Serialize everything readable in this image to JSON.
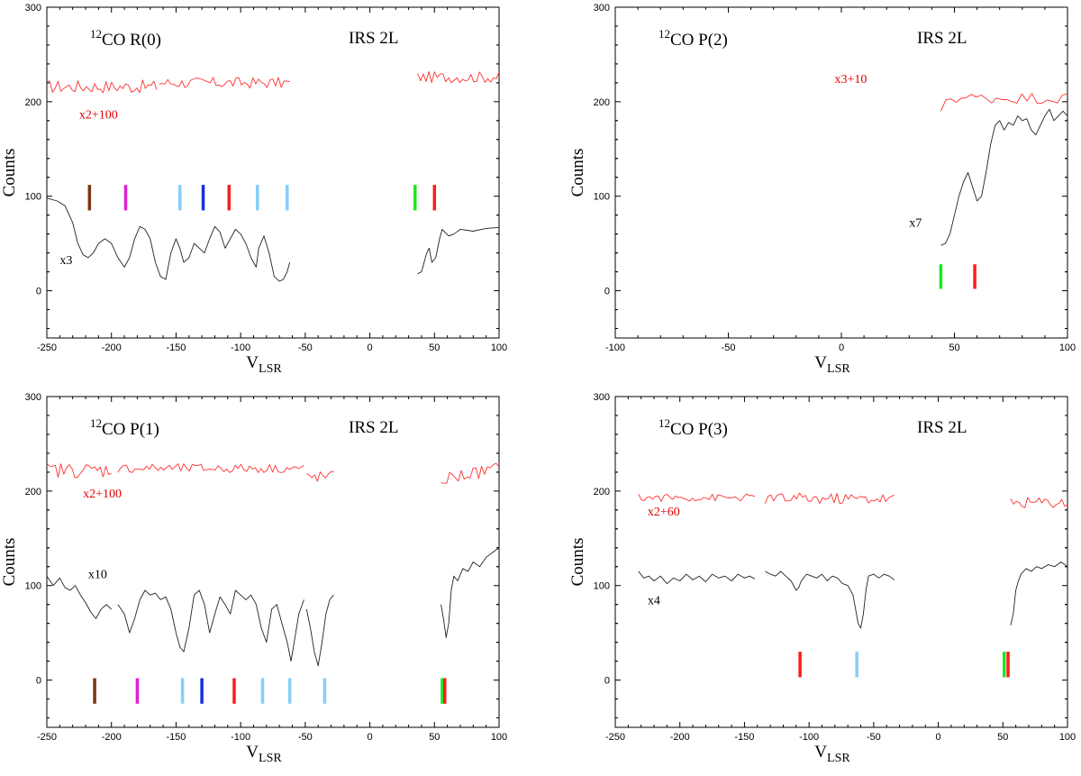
{
  "chart_data": [
    {
      "type": "line",
      "title_sup": "12",
      "title_main": "CO R(0)",
      "source": "IRS 2L",
      "ylabel": "Counts",
      "xlabel_main": "V",
      "xlabel_sub": "LSR",
      "xlim": [
        -250,
        100
      ],
      "ylim": [
        -50,
        300
      ],
      "xticks": [
        "-250",
        "-200",
        "-150",
        "-100",
        "-50",
        "0",
        "50",
        "100"
      ],
      "yticks": [
        "0",
        "100",
        "200",
        "300"
      ],
      "top_series": {
        "name": "x2+100",
        "label_pos": [
          -225,
          182
        ],
        "segments": [
          {
            "x0": -250,
            "x1": -165,
            "level": 216,
            "noise": 7
          },
          {
            "x0": -163,
            "x1": -62,
            "level": 220,
            "noise": 6
          },
          {
            "x0": 37,
            "x1": 100,
            "level": 226,
            "noise": 6
          }
        ]
      },
      "bottom_series": {
        "name": "x3",
        "label_pos": [
          -240,
          28
        ],
        "segments": [
          {
            "x": [
              -250,
              -242,
              -236,
              -230,
              -226,
              -222,
              -218,
              -214,
              -210,
              -205,
              -200,
              -195,
              -190,
              -186,
              -182,
              -178,
              -174,
              -170,
              -166,
              -162,
              -158,
              -154,
              -150,
              -147,
              -144,
              -140,
              -136,
              -132,
              -128,
              -124,
              -120,
              -116,
              -112,
              -108,
              -104,
              -100,
              -96,
              -92,
              -88,
              -86,
              -82,
              -78,
              -74,
              -70,
              -67,
              -64,
              -62
            ],
            "y": [
              98,
              95,
              90,
              72,
              50,
              38,
              35,
              40,
              50,
              55,
              50,
              35,
              25,
              35,
              55,
              68,
              65,
              55,
              30,
              15,
              12,
              40,
              55,
              45,
              30,
              35,
              50,
              45,
              40,
              55,
              68,
              62,
              45,
              55,
              65,
              60,
              50,
              35,
              25,
              45,
              58,
              40,
              15,
              10,
              12,
              20,
              30
            ]
          },
          {
            "x": [
              37,
              40,
              44,
              46,
              48,
              51,
              54,
              56,
              58,
              61,
              65,
              70,
              80,
              90,
              100
            ],
            "y": [
              18,
              20,
              40,
              45,
              30,
              35,
              55,
              65,
              62,
              58,
              60,
              65,
              63,
              66,
              67
            ]
          }
        ]
      },
      "markers": [
        {
          "x": -217,
          "color": "#7a3511"
        },
        {
          "x": -189,
          "color": "#e21fd3"
        },
        {
          "x": -147,
          "color": "#87cefa"
        },
        {
          "x": -129,
          "color": "#1531dd"
        },
        {
          "x": -109,
          "color": "#ff1c1c"
        },
        {
          "x": -87,
          "color": "#87cefa"
        },
        {
          "x": -64,
          "color": "#87cefa"
        },
        {
          "x": 35,
          "color": "#1fe61f"
        },
        {
          "x": 50,
          "color": "#ff1c1c"
        }
      ],
      "marker_range": [
        85,
        112
      ]
    },
    {
      "type": "line",
      "title_sup": "12",
      "title_main": "CO P(2)",
      "source": "IRS 2L",
      "ylabel": "Counts",
      "xlabel_main": "V",
      "xlabel_sub": "LSR",
      "xlim": [
        -100,
        100
      ],
      "ylim": [
        -50,
        300
      ],
      "xticks": [
        "-100",
        "-50",
        "0",
        "50",
        "100"
      ],
      "yticks": [
        "0",
        "100",
        "200",
        "300"
      ],
      "top_series": {
        "name": "x3+10",
        "label_pos": [
          -3,
          220
        ],
        "segments": [
          {
            "x0": 44,
            "x1": 100,
            "level": 204,
            "noise": 6,
            "start": 190
          }
        ]
      },
      "bottom_series": {
        "name": "x7",
        "label_pos": [
          30,
          68
        ],
        "segments": [
          {
            "x": [
              44,
              46,
              48,
              50,
              52,
              54,
              56,
              58,
              60,
              62,
              64,
              66,
              68,
              70,
              72,
              74,
              76,
              78,
              80,
              82,
              84,
              86,
              88,
              90,
              92,
              94,
              96,
              98,
              100
            ],
            "y": [
              48,
              50,
              60,
              80,
              100,
              115,
              125,
              110,
              95,
              100,
              125,
              155,
              175,
              180,
              170,
              178,
              175,
              185,
              180,
              182,
              170,
              165,
              175,
              185,
              192,
              180,
              185,
              190,
              185
            ]
          }
        ]
      },
      "markers": [
        {
          "x": 44,
          "color": "#1fe61f"
        },
        {
          "x": 59,
          "color": "#ff1c1c"
        }
      ],
      "marker_range": [
        2,
        28
      ]
    },
    {
      "type": "line",
      "title_sup": "12",
      "title_main": "CO P(1)",
      "source": "IRS 2L",
      "ylabel": "Counts",
      "xlabel_main": "V",
      "xlabel_sub": "LSR",
      "xlim": [
        -250,
        100
      ],
      "ylim": [
        -50,
        300
      ],
      "xticks": [
        "-250",
        "-200",
        "-150",
        "-100",
        "-50",
        "0",
        "50",
        "100"
      ],
      "yticks": [
        "0",
        "100",
        "200",
        "300"
      ],
      "top_series": {
        "name": "x2+100",
        "label_pos": [
          -222,
          193
        ],
        "segments": [
          {
            "x0": -250,
            "x1": -200,
            "level": 222,
            "noise": 8
          },
          {
            "x0": -195,
            "x1": -51,
            "level": 224,
            "noise": 5
          },
          {
            "x0": -49,
            "x1": -28,
            "level": 215,
            "noise": 6
          },
          {
            "x0": 55,
            "x1": 100,
            "level": 218,
            "noise": 7,
            "rise": 12
          }
        ]
      },
      "bottom_series": {
        "name": "x10",
        "label_pos": [
          -218,
          108
        ],
        "segments": [
          {
            "x": [
              -250,
              -245,
              -240,
              -236,
              -232,
              -228,
              -224,
              -220,
              -216,
              -212,
              -208,
              -204,
              -200
            ],
            "y": [
              110,
              100,
              108,
              98,
              95,
              100,
              90,
              82,
              72,
              65,
              75,
              80,
              75
            ]
          },
          {
            "x": [
              -195,
              -190,
              -186,
              -182,
              -178,
              -174,
              -170,
              -166,
              -162,
              -158,
              -154,
              -150,
              -147,
              -144,
              -140,
              -136,
              -132,
              -128,
              -124,
              -120,
              -116,
              -112,
              -108,
              -104,
              -100,
              -96,
              -92,
              -88,
              -84,
              -80,
              -76,
              -72,
              -68,
              -64,
              -61,
              -58,
              -55,
              -51
            ],
            "y": [
              80,
              70,
              50,
              65,
              85,
              95,
              90,
              92,
              85,
              88,
              75,
              50,
              35,
              30,
              55,
              90,
              95,
              80,
              50,
              70,
              88,
              80,
              70,
              95,
              90,
              85,
              90,
              80,
              55,
              40,
              75,
              80,
              60,
              40,
              20,
              45,
              70,
              85
            ]
          },
          {
            "x": [
              -49,
              -46,
              -43,
              -40,
              -37,
              -34,
              -31,
              -28
            ],
            "y": [
              75,
              55,
              30,
              15,
              40,
              70,
              85,
              90
            ]
          },
          {
            "x": [
              55,
              57,
              59,
              61,
              63,
              65,
              68,
              72,
              76,
              80,
              85,
              90,
              95,
              100
            ],
            "y": [
              80,
              65,
              45,
              60,
              95,
              110,
              105,
              118,
              115,
              125,
              120,
              130,
              135,
              140
            ]
          }
        ]
      },
      "markers": [
        {
          "x": -213,
          "color": "#7a3511"
        },
        {
          "x": -180,
          "color": "#e21fd3"
        },
        {
          "x": -145,
          "color": "#87cefa"
        },
        {
          "x": -130,
          "color": "#1531dd"
        },
        {
          "x": -105,
          "color": "#ff1c1c"
        },
        {
          "x": -83,
          "color": "#87cefa"
        },
        {
          "x": -62,
          "color": "#87cefa"
        },
        {
          "x": -35,
          "color": "#87cefa"
        },
        {
          "x": 56,
          "color": "#1fe61f"
        },
        {
          "x": 58,
          "color": "#ff1c1c"
        }
      ],
      "marker_range": [
        -25,
        2
      ]
    },
    {
      "type": "line",
      "title_sup": "12",
      "title_main": "CO P(3)",
      "source": "IRS 2L",
      "ylabel": "Counts",
      "xlabel_main": "V",
      "xlabel_sub": "LSR",
      "xlim": [
        -250,
        100
      ],
      "ylim": [
        -50,
        300
      ],
      "xticks": [
        "-250",
        "-200",
        "-150",
        "-100",
        "-50",
        "0",
        "50",
        "100"
      ],
      "yticks": [
        "0",
        "100",
        "200",
        "300"
      ],
      "top_series": {
        "name": "x2+60",
        "label_pos": [
          -225,
          174
        ],
        "segments": [
          {
            "x0": -232,
            "x1": -142,
            "level": 193,
            "noise": 4
          },
          {
            "x0": -134,
            "x1": -34,
            "level": 192,
            "noise": 6
          },
          {
            "x0": 56,
            "x1": 100,
            "level": 188,
            "noise": 6
          }
        ]
      },
      "bottom_series": {
        "name": "x4",
        "label_pos": [
          -225,
          80
        ],
        "segments": [
          {
            "x": [
              -232,
              -228,
              -224,
              -220,
              -215,
              -210,
              -205,
              -200,
              -195,
              -190,
              -185,
              -180,
              -175,
              -170,
              -165,
              -160,
              -155,
              -150,
              -146,
              -142
            ],
            "y": [
              115,
              108,
              110,
              105,
              110,
              102,
              108,
              105,
              112,
              106,
              110,
              104,
              112,
              108,
              110,
              105,
              112,
              108,
              110,
              107
            ]
          },
          {
            "x": [
              -134,
              -130,
              -126,
              -122,
              -118,
              -114,
              -110,
              -108,
              -106,
              -102,
              -98,
              -94,
              -90,
              -86,
              -82,
              -78,
              -74,
              -70,
              -66,
              -64,
              -62,
              -60,
              -58,
              -56,
              -54,
              -50,
              -46,
              -42,
              -38,
              -34
            ],
            "y": [
              115,
              112,
              110,
              115,
              110,
              105,
              95,
              98,
              105,
              112,
              110,
              108,
              112,
              105,
              110,
              108,
              102,
              100,
              90,
              75,
              60,
              55,
              70,
              95,
              110,
              112,
              108,
              112,
              110,
              106
            ]
          },
          {
            "x": [
              56,
              58,
              60,
              62,
              64,
              68,
              72,
              76,
              80,
              85,
              90,
              95,
              100
            ],
            "y": [
              58,
              70,
              95,
              105,
              112,
              118,
              115,
              120,
              118,
              122,
              120,
              125,
              120
            ]
          }
        ]
      },
      "markers": [
        {
          "x": -107,
          "color": "#ff1c1c"
        },
        {
          "x": -63,
          "color": "#87cefa"
        },
        {
          "x": 51,
          "color": "#1fe61f"
        },
        {
          "x": 54,
          "color": "#ff1c1c"
        }
      ],
      "marker_range": [
        3,
        30
      ]
    }
  ]
}
